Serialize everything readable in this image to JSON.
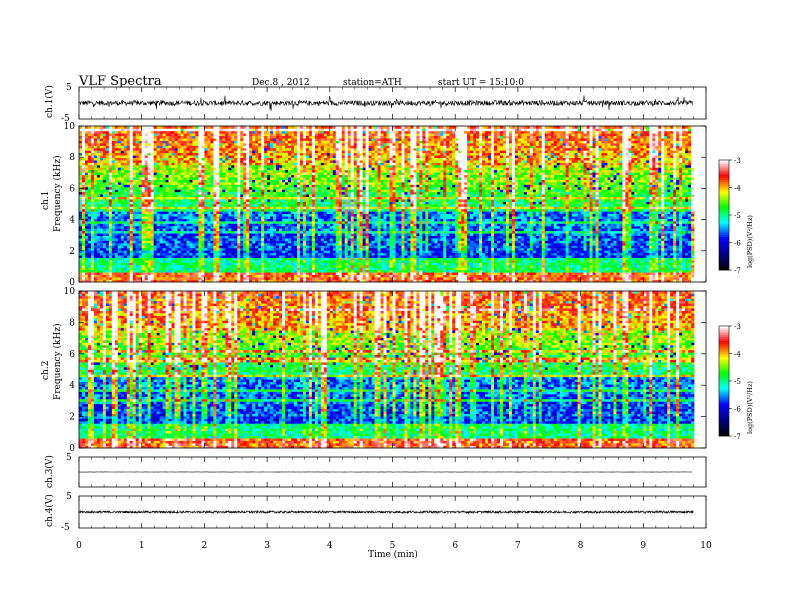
{
  "header": {
    "title": "VLF  Spectra",
    "date": "Dec.8  , 2012",
    "station": "station=ATH",
    "start": "start  UT  =    15:10:0"
  },
  "chart_data": [
    {
      "type": "line",
      "panel": "ch1-waveform",
      "ylabel": "ch.1(V)",
      "ylim": [
        -5,
        5
      ],
      "yticks": [
        "5",
        "-5"
      ],
      "xlim": [
        0,
        10
      ],
      "data_extent_min": [
        0,
        9.8
      ],
      "description_values": {
        "baseline_V": 0,
        "typical_amplitude_V": 0.8,
        "max_spike_V": 2.5
      }
    },
    {
      "type": "heatmap",
      "panel": "ch1-spectrogram",
      "ylabel_top": "ch.1",
      "ylabel": "Frequency  (kHz)",
      "ylim": [
        0,
        10
      ],
      "yticks": [
        "0",
        "2",
        "4",
        "6",
        "8",
        "10"
      ],
      "xlim": [
        0,
        10
      ],
      "colorbar": {
        "label": "log(PSD)(V²/Hz)",
        "range": [
          -7,
          -3
        ],
        "ticks": [
          "-3",
          "-4",
          "-5",
          "-6",
          "-7"
        ]
      }
    },
    {
      "type": "heatmap",
      "panel": "ch2-spectrogram",
      "ylabel_top": "ch.2",
      "ylabel": "Frequency  (kHz)",
      "ylim": [
        0,
        10
      ],
      "yticks": [
        "0",
        "2",
        "4",
        "6",
        "8",
        "10"
      ],
      "xlim": [
        0,
        10
      ],
      "colorbar": {
        "label": "log(PSD)(V²/Hz)",
        "range": [
          -7,
          -3
        ],
        "ticks": [
          "-3",
          "-4",
          "-5",
          "-6",
          "-7"
        ]
      }
    },
    {
      "type": "line",
      "panel": "ch3-waveform",
      "ylabel": "ch.3(V)",
      "ylim": [
        -5,
        5
      ],
      "yticks": [
        "5",
        "-5"
      ],
      "xlim": [
        0,
        10
      ],
      "description_values": {
        "baseline_V": 0,
        "typical_amplitude_V": 0.05
      }
    },
    {
      "type": "line",
      "panel": "ch4-waveform",
      "ylabel": "ch.4(V)",
      "ylim": [
        -5,
        5
      ],
      "yticks": [
        "5",
        "-5"
      ],
      "xlim": [
        0,
        10
      ],
      "description_values": {
        "baseline_V": 0,
        "typical_amplitude_V": 0.35
      }
    }
  ],
  "x_axis": {
    "label": "Time  (min)",
    "ticks": [
      "0",
      "1",
      "2",
      "3",
      "4",
      "5",
      "6",
      "7",
      "8",
      "9",
      "10"
    ]
  },
  "colors": {
    "scale": [
      "#000000",
      "#000080",
      "#0000ff",
      "#00ffff",
      "#00ff00",
      "#ffff00",
      "#ff0000",
      "#ffffff"
    ]
  }
}
